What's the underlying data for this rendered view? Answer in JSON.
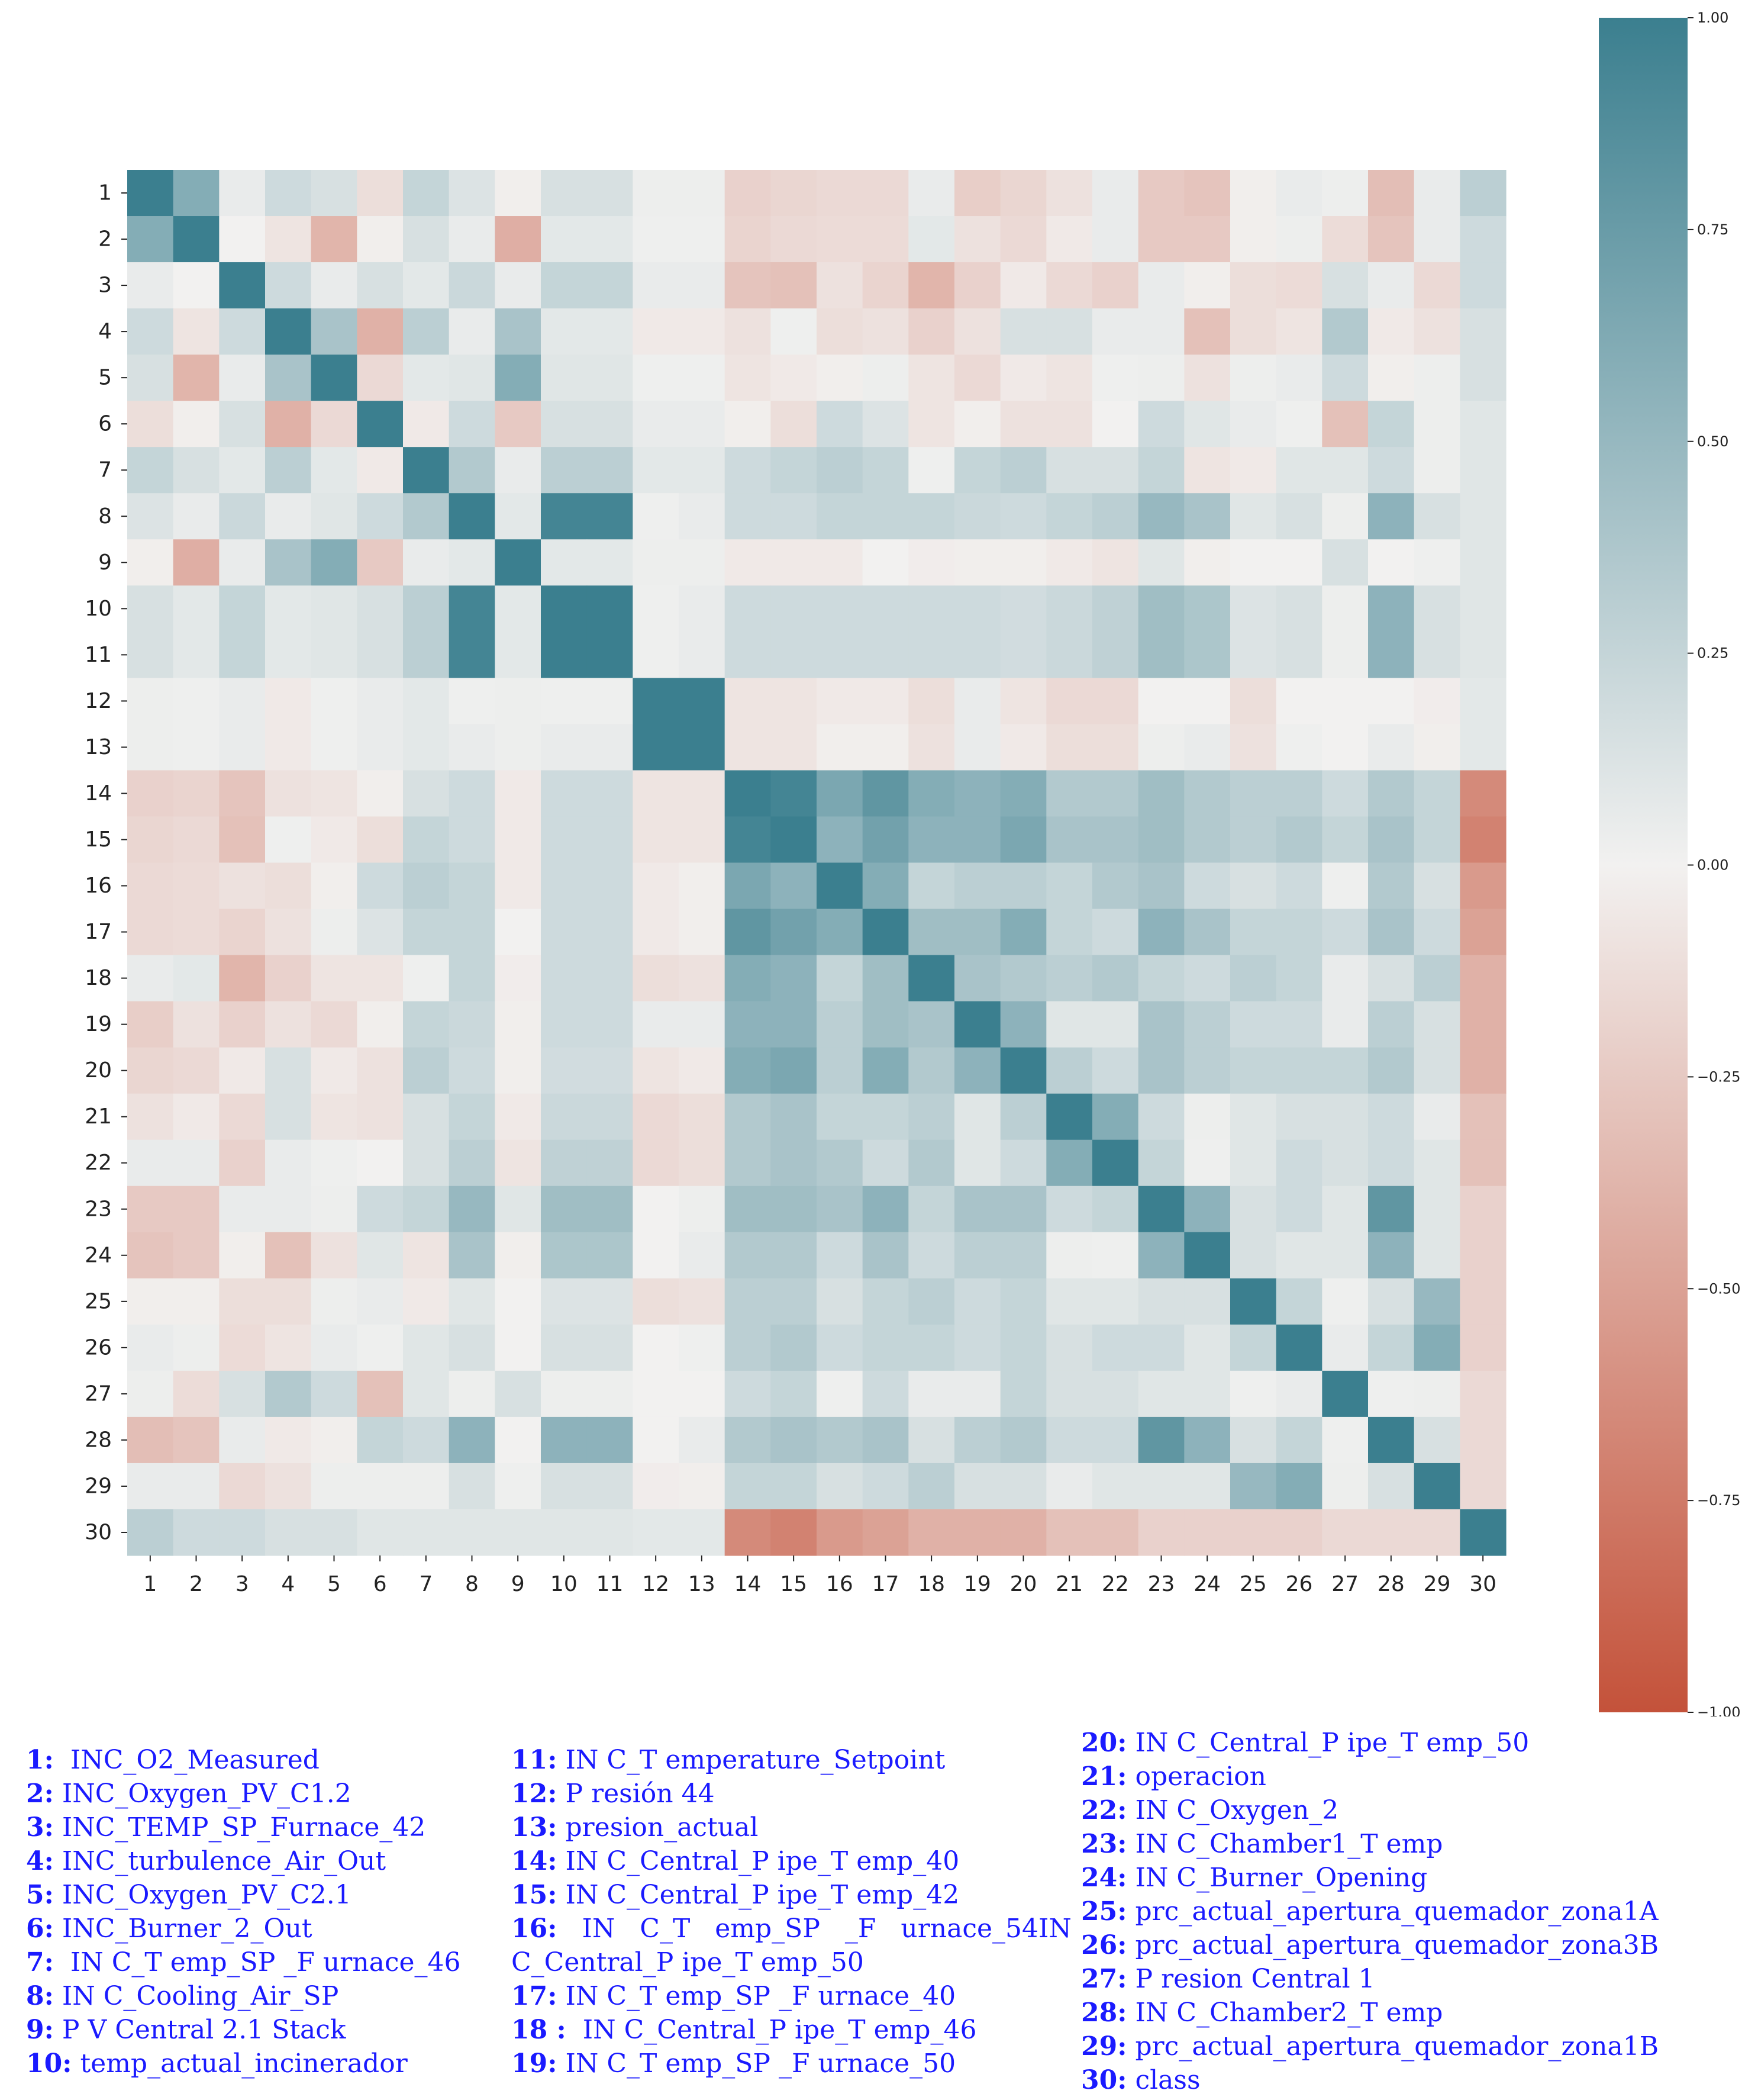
{
  "chart_data": {
    "type": "heatmap",
    "title": "",
    "row_labels": [
      "1",
      "2",
      "3",
      "4",
      "5",
      "6",
      "7",
      "8",
      "9",
      "10",
      "11",
      "12",
      "13",
      "14",
      "15",
      "16",
      "17",
      "18",
      "19",
      "20",
      "21",
      "22",
      "23",
      "24",
      "25",
      "26",
      "27",
      "28",
      "29",
      "30"
    ],
    "col_labels": [
      "1",
      "2",
      "3",
      "4",
      "5",
      "6",
      "7",
      "8",
      "9",
      "10",
      "11",
      "12",
      "13",
      "14",
      "15",
      "16",
      "17",
      "18",
      "19",
      "20",
      "21",
      "22",
      "23",
      "24",
      "25",
      "26",
      "27",
      "28",
      "29",
      "30"
    ],
    "values": [
      [
        1.0,
        0.6,
        0.05,
        0.2,
        0.15,
        -0.12,
        0.25,
        0.12,
        -0.02,
        0.15,
        0.15,
        0.03,
        0.03,
        -0.2,
        -0.17,
        -0.15,
        -0.15,
        0.05,
        -0.22,
        -0.17,
        -0.1,
        0.05,
        -0.25,
        -0.28,
        -0.02,
        0.05,
        0.03,
        -0.32,
        0.05,
        0.3
      ],
      [
        0.6,
        1.0,
        0.0,
        -0.08,
        -0.38,
        -0.02,
        0.15,
        0.05,
        -0.42,
        0.08,
        0.08,
        0.02,
        0.02,
        -0.18,
        -0.15,
        -0.14,
        -0.14,
        0.08,
        -0.1,
        -0.15,
        -0.05,
        0.05,
        -0.25,
        -0.25,
        -0.02,
        0.03,
        -0.13,
        -0.28,
        0.05,
        0.2
      ],
      [
        0.05,
        0.0,
        1.0,
        0.2,
        0.05,
        0.15,
        0.08,
        0.22,
        0.05,
        0.25,
        0.25,
        0.05,
        0.05,
        -0.28,
        -0.3,
        -0.1,
        -0.18,
        -0.38,
        -0.2,
        -0.05,
        -0.15,
        -0.2,
        0.05,
        -0.02,
        -0.12,
        -0.14,
        0.15,
        0.05,
        -0.15,
        0.2
      ],
      [
        0.2,
        -0.08,
        0.2,
        1.0,
        0.4,
        -0.4,
        0.3,
        0.05,
        0.4,
        0.08,
        0.08,
        -0.05,
        -0.05,
        -0.1,
        0.02,
        -0.12,
        -0.1,
        -0.2,
        -0.1,
        0.15,
        0.15,
        0.05,
        0.05,
        -0.3,
        -0.12,
        -0.08,
        0.35,
        -0.05,
        -0.1,
        0.15
      ],
      [
        0.15,
        -0.38,
        0.05,
        0.4,
        1.0,
        -0.15,
        0.08,
        0.1,
        0.6,
        0.1,
        0.1,
        0.02,
        0.02,
        -0.08,
        -0.05,
        -0.02,
        0.03,
        -0.08,
        -0.15,
        -0.05,
        -0.08,
        0.02,
        0.03,
        -0.1,
        0.03,
        0.05,
        0.2,
        -0.02,
        0.03,
        0.15
      ],
      [
        -0.12,
        -0.02,
        0.15,
        -0.4,
        -0.15,
        1.0,
        -0.05,
        0.2,
        -0.25,
        0.15,
        0.15,
        0.05,
        0.05,
        -0.02,
        -0.12,
        0.2,
        0.12,
        -0.08,
        -0.02,
        -0.1,
        -0.1,
        0.0,
        0.2,
        0.1,
        0.05,
        0.02,
        -0.3,
        0.25,
        0.03,
        0.1
      ],
      [
        0.25,
        0.15,
        0.08,
        0.3,
        0.08,
        -0.05,
        1.0,
        0.35,
        0.05,
        0.3,
        0.3,
        0.08,
        0.08,
        0.2,
        0.25,
        0.3,
        0.25,
        0.02,
        0.25,
        0.3,
        0.15,
        0.15,
        0.25,
        -0.08,
        -0.05,
        0.1,
        0.1,
        0.2,
        0.03,
        0.1
      ],
      [
        0.12,
        0.05,
        0.22,
        0.05,
        0.1,
        0.2,
        0.35,
        1.0,
        0.08,
        0.95,
        0.95,
        0.02,
        0.05,
        0.2,
        0.2,
        0.25,
        0.25,
        0.25,
        0.22,
        0.2,
        0.25,
        0.3,
        0.5,
        0.4,
        0.1,
        0.15,
        0.03,
        0.55,
        0.15,
        0.1
      ],
      [
        -0.02,
        -0.42,
        0.05,
        0.4,
        0.6,
        -0.25,
        0.05,
        0.08,
        1.0,
        0.08,
        0.08,
        0.03,
        0.03,
        -0.05,
        -0.05,
        -0.05,
        0.0,
        -0.03,
        -0.02,
        -0.02,
        -0.05,
        -0.08,
        0.1,
        -0.02,
        0.0,
        0.0,
        0.15,
        0.0,
        0.02,
        0.1
      ],
      [
        0.15,
        0.08,
        0.25,
        0.08,
        0.1,
        0.15,
        0.3,
        0.95,
        0.08,
        1.0,
        1.0,
        0.02,
        0.05,
        0.2,
        0.2,
        0.2,
        0.2,
        0.2,
        0.2,
        0.18,
        0.22,
        0.28,
        0.45,
        0.38,
        0.12,
        0.15,
        0.03,
        0.55,
        0.15,
        0.1
      ],
      [
        0.15,
        0.08,
        0.25,
        0.08,
        0.1,
        0.15,
        0.3,
        0.95,
        0.08,
        1.0,
        1.0,
        0.02,
        0.05,
        0.2,
        0.2,
        0.2,
        0.2,
        0.2,
        0.2,
        0.18,
        0.22,
        0.28,
        0.45,
        0.38,
        0.12,
        0.15,
        0.03,
        0.55,
        0.15,
        0.1
      ],
      [
        0.03,
        0.02,
        0.05,
        -0.05,
        0.02,
        0.05,
        0.08,
        0.02,
        0.03,
        0.02,
        0.02,
        1.0,
        1.0,
        -0.08,
        -0.08,
        -0.05,
        -0.05,
        -0.12,
        0.05,
        -0.08,
        -0.15,
        -0.15,
        0.0,
        0.0,
        -0.12,
        0.0,
        0.0,
        0.0,
        -0.03,
        0.08
      ],
      [
        0.03,
        0.02,
        0.05,
        -0.05,
        0.02,
        0.05,
        0.08,
        0.05,
        0.03,
        0.05,
        0.05,
        1.0,
        1.0,
        -0.08,
        -0.08,
        -0.02,
        -0.02,
        -0.1,
        0.05,
        -0.05,
        -0.12,
        -0.12,
        0.03,
        0.05,
        -0.1,
        0.02,
        0.0,
        0.05,
        -0.02,
        0.08
      ],
      [
        -0.2,
        -0.18,
        -0.28,
        -0.1,
        -0.08,
        -0.02,
        0.15,
        0.2,
        -0.05,
        0.2,
        0.2,
        -0.08,
        -0.08,
        1.0,
        0.95,
        0.65,
        0.8,
        0.6,
        0.55,
        0.6,
        0.35,
        0.35,
        0.45,
        0.35,
        0.3,
        0.3,
        0.2,
        0.35,
        0.25,
        -0.65
      ],
      [
        -0.17,
        -0.15,
        -0.3,
        0.02,
        -0.05,
        -0.12,
        0.25,
        0.2,
        -0.05,
        0.2,
        0.2,
        -0.08,
        -0.08,
        0.95,
        1.0,
        0.55,
        0.7,
        0.55,
        0.55,
        0.65,
        0.4,
        0.4,
        0.45,
        0.35,
        0.3,
        0.35,
        0.25,
        0.4,
        0.25,
        -0.7
      ],
      [
        -0.15,
        -0.14,
        -0.1,
        -0.12,
        -0.02,
        0.2,
        0.3,
        0.25,
        -0.05,
        0.2,
        0.2,
        -0.05,
        -0.02,
        0.65,
        0.55,
        1.0,
        0.6,
        0.25,
        0.3,
        0.3,
        0.25,
        0.35,
        0.4,
        0.2,
        0.15,
        0.2,
        0.02,
        0.35,
        0.15,
        -0.55
      ],
      [
        -0.15,
        -0.14,
        -0.18,
        -0.1,
        0.03,
        0.12,
        0.25,
        0.25,
        0.0,
        0.2,
        0.2,
        -0.05,
        -0.02,
        0.8,
        0.7,
        0.6,
        1.0,
        0.45,
        0.45,
        0.6,
        0.25,
        0.2,
        0.55,
        0.4,
        0.25,
        0.25,
        0.2,
        0.4,
        0.2,
        -0.5
      ],
      [
        0.05,
        0.08,
        -0.38,
        -0.2,
        -0.08,
        -0.08,
        0.02,
        0.25,
        -0.03,
        0.2,
        0.2,
        -0.12,
        -0.1,
        0.6,
        0.55,
        0.25,
        0.45,
        1.0,
        0.4,
        0.35,
        0.3,
        0.35,
        0.25,
        0.2,
        0.3,
        0.25,
        0.05,
        0.15,
        0.3,
        -0.4
      ],
      [
        -0.22,
        -0.1,
        -0.2,
        -0.1,
        -0.15,
        -0.02,
        0.25,
        0.22,
        -0.02,
        0.2,
        0.2,
        0.05,
        0.05,
        0.55,
        0.55,
        0.3,
        0.45,
        0.4,
        1.0,
        0.55,
        0.1,
        0.1,
        0.4,
        0.3,
        0.2,
        0.2,
        0.05,
        0.3,
        0.15,
        -0.4
      ],
      [
        -0.17,
        -0.15,
        -0.05,
        0.15,
        -0.05,
        -0.1,
        0.3,
        0.2,
        -0.02,
        0.18,
        0.18,
        -0.08,
        -0.05,
        0.6,
        0.65,
        0.3,
        0.6,
        0.35,
        0.55,
        1.0,
        0.3,
        0.2,
        0.4,
        0.3,
        0.25,
        0.25,
        0.25,
        0.35,
        0.15,
        -0.4
      ],
      [
        -0.1,
        -0.05,
        -0.15,
        0.15,
        -0.08,
        -0.1,
        0.15,
        0.25,
        -0.05,
        0.22,
        0.22,
        -0.15,
        -0.12,
        0.35,
        0.4,
        0.25,
        0.25,
        0.3,
        0.1,
        0.3,
        1.0,
        0.6,
        0.2,
        0.03,
        0.1,
        0.15,
        0.15,
        0.2,
        0.05,
        -0.3
      ],
      [
        0.05,
        0.05,
        -0.2,
        0.05,
        0.02,
        0.0,
        0.15,
        0.3,
        -0.08,
        0.28,
        0.28,
        -0.15,
        -0.12,
        0.35,
        0.4,
        0.35,
        0.2,
        0.35,
        0.1,
        0.2,
        0.6,
        1.0,
        0.25,
        0.02,
        0.1,
        0.2,
        0.15,
        0.2,
        0.1,
        -0.3
      ],
      [
        -0.25,
        -0.25,
        0.05,
        0.05,
        0.03,
        0.2,
        0.25,
        0.5,
        0.1,
        0.45,
        0.45,
        0.0,
        0.03,
        0.45,
        0.45,
        0.4,
        0.55,
        0.25,
        0.4,
        0.4,
        0.2,
        0.25,
        1.0,
        0.55,
        0.15,
        0.2,
        0.1,
        0.8,
        0.1,
        -0.2
      ],
      [
        -0.28,
        -0.25,
        -0.02,
        -0.3,
        -0.1,
        0.1,
        -0.08,
        0.4,
        -0.02,
        0.38,
        0.38,
        0.0,
        0.05,
        0.35,
        0.35,
        0.2,
        0.4,
        0.2,
        0.3,
        0.3,
        0.03,
        0.02,
        0.55,
        1.0,
        0.15,
        0.1,
        0.1,
        0.55,
        0.1,
        -0.2
      ],
      [
        -0.02,
        -0.02,
        -0.12,
        -0.12,
        0.03,
        0.05,
        -0.05,
        0.1,
        0.0,
        0.12,
        0.12,
        -0.12,
        -0.1,
        0.3,
        0.3,
        0.15,
        0.25,
        0.3,
        0.2,
        0.25,
        0.1,
        0.1,
        0.15,
        0.15,
        1.0,
        0.25,
        0.02,
        0.15,
        0.5,
        -0.2
      ],
      [
        0.05,
        0.03,
        -0.14,
        -0.08,
        0.05,
        0.02,
        0.1,
        0.15,
        0.0,
        0.15,
        0.15,
        0.0,
        0.02,
        0.3,
        0.35,
        0.2,
        0.25,
        0.25,
        0.2,
        0.25,
        0.15,
        0.2,
        0.2,
        0.1,
        0.25,
        1.0,
        0.05,
        0.25,
        0.6,
        -0.2
      ],
      [
        0.03,
        -0.13,
        0.15,
        0.35,
        0.2,
        -0.3,
        0.1,
        0.03,
        0.15,
        0.03,
        0.03,
        0.0,
        0.0,
        0.2,
        0.25,
        0.02,
        0.2,
        0.05,
        0.05,
        0.25,
        0.15,
        0.15,
        0.1,
        0.1,
        0.02,
        0.05,
        1.0,
        0.02,
        0.03,
        -0.15
      ],
      [
        -0.32,
        -0.28,
        0.05,
        -0.05,
        -0.02,
        0.25,
        0.2,
        0.55,
        0.0,
        0.55,
        0.55,
        0.0,
        0.05,
        0.35,
        0.4,
        0.35,
        0.4,
        0.15,
        0.3,
        0.35,
        0.2,
        0.2,
        0.8,
        0.55,
        0.15,
        0.25,
        0.02,
        1.0,
        0.15,
        -0.15
      ],
      [
        0.05,
        0.05,
        -0.15,
        -0.1,
        0.03,
        0.03,
        0.03,
        0.15,
        0.02,
        0.15,
        0.15,
        -0.03,
        -0.02,
        0.25,
        0.25,
        0.15,
        0.2,
        0.3,
        0.15,
        0.15,
        0.05,
        0.1,
        0.1,
        0.1,
        0.5,
        0.6,
        0.03,
        0.15,
        1.0,
        -0.15
      ],
      [
        0.3,
        0.2,
        0.2,
        0.15,
        0.15,
        0.1,
        0.1,
        0.1,
        0.1,
        0.1,
        0.1,
        0.08,
        0.08,
        -0.65,
        -0.7,
        -0.55,
        -0.5,
        -0.4,
        -0.4,
        -0.4,
        -0.3,
        -0.3,
        -0.2,
        -0.2,
        -0.2,
        -0.2,
        -0.15,
        -0.15,
        -0.15,
        1.0
      ]
    ],
    "colorbar": {
      "vmin": -1.0,
      "vmax": 1.0,
      "tick_labels": [
        "1.00",
        "0.75",
        "0.50",
        "0.25",
        "0.00",
        "−0.25",
        "−0.50",
        "−0.75",
        "−1.00"
      ],
      "colors": {
        "low": "#c4523a",
        "mid": "#f2f1f0",
        "high": "#3b7f8f"
      }
    }
  },
  "legend": {
    "col1": [
      {
        "num": "1:",
        "text": "  INC_O2_Measured"
      },
      {
        "num": "2:",
        "text": " INC_Oxygen_PV_C1.2"
      },
      {
        "num": "3:",
        "text": " INC_TEMP_SP_Furnace_42"
      },
      {
        "num": "4:",
        "text": " INC_turbulence_Air_Out"
      },
      {
        "num": "5:",
        "text": " INC_Oxygen_PV_C2.1"
      },
      {
        "num": "6:",
        "text": " INC_Burner_2_Out"
      },
      {
        "num": "7:",
        "text": "  IN C_T emp_SP _F urnace_46"
      },
      {
        "num": "8:",
        "text": " IN C_Cooling_Air_SP"
      },
      {
        "num": "9:",
        "text": " P V Central 2.1 Stack"
      },
      {
        "num": "10:",
        "text": " temp_actual_incinerador"
      }
    ],
    "col2": [
      {
        "num": "11:",
        "text": " IN C_T emperature_Setpoint"
      },
      {
        "num": "12:",
        "text": " P resión 44"
      },
      {
        "num": "13:",
        "text": " presion_actual"
      },
      {
        "num": "14:",
        "text": " IN C_Central_P ipe_T emp_40"
      },
      {
        "num": "15:",
        "text": " IN C_Central_P ipe_T emp_42"
      },
      {
        "num": "16:",
        "text": "   IN   C_T   emp_SP   _F   urnace_54IN"
      },
      {
        "num": "",
        "text": "C_Central_P ipe_T emp_50"
      },
      {
        "num": "17:",
        "text": " IN C_T emp_SP _F urnace_40"
      },
      {
        "num": "18 :",
        "text": "  IN C_Central_P ipe_T emp_46"
      },
      {
        "num": "19:",
        "text": " IN C_T emp_SP _F urnace_50"
      }
    ],
    "col3": [
      {
        "num": "20:",
        "text": " IN C_Central_P ipe_T emp_50"
      },
      {
        "num": "21:",
        "text": " operacion"
      },
      {
        "num": "22:",
        "text": " IN C_Oxygen_2"
      },
      {
        "num": "23:",
        "text": " IN C_Chamber1_T emp"
      },
      {
        "num": "24:",
        "text": " IN C_Burner_Opening"
      },
      {
        "num": "25:",
        "text": " prc_actual_apertura_quemador_zona1A"
      },
      {
        "num": "26:",
        "text": " prc_actual_apertura_quemador_zona3B"
      },
      {
        "num": "27:",
        "text": " P resion Central 1"
      },
      {
        "num": "28:",
        "text": " IN C_Chamber2_T emp"
      },
      {
        "num": "29:",
        "text": " prc_actual_apertura_quemador_zona1B"
      },
      {
        "num": "30:",
        "text": " class"
      }
    ]
  }
}
